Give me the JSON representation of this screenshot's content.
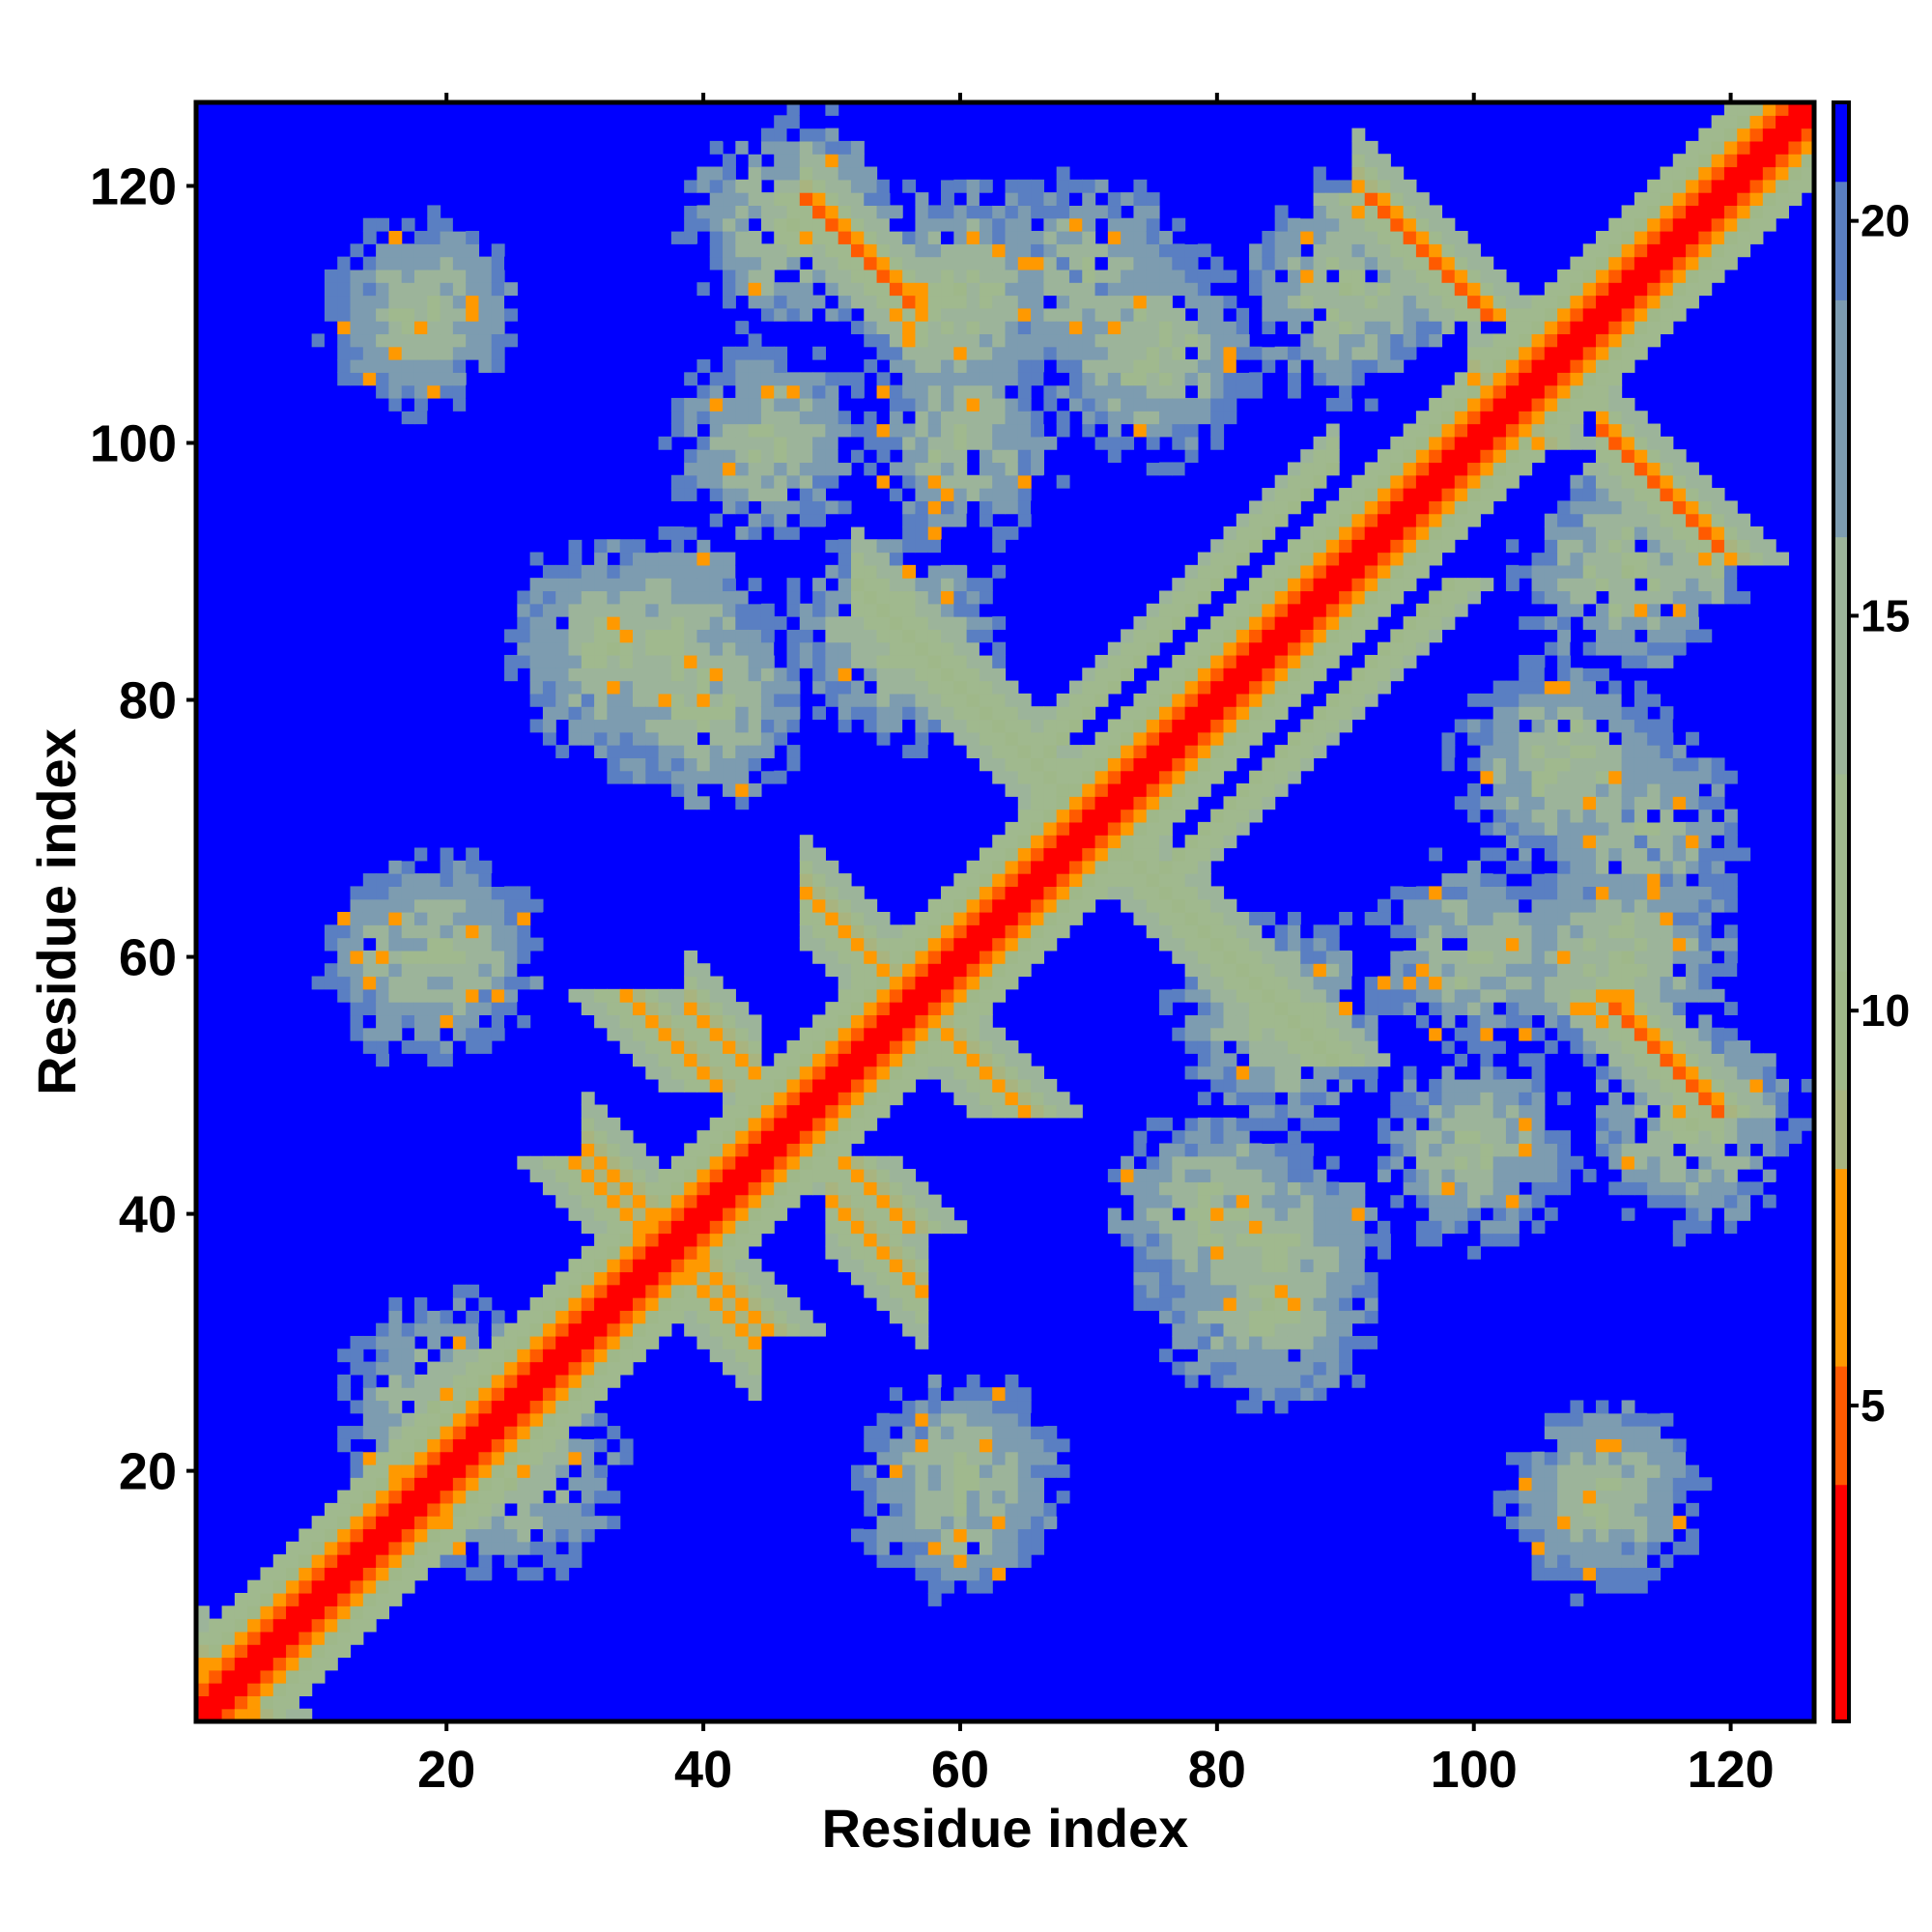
{
  "chart_data": {
    "type": "heatmap",
    "title": "",
    "xlabel": "Residue index",
    "ylabel": "Residue index",
    "xlim": [
      0.5,
      126.5
    ],
    "ylim": [
      0.5,
      126.5
    ],
    "x_ticks": [
      20,
      40,
      60,
      80,
      100,
      120
    ],
    "y_ticks": [
      20,
      40,
      60,
      80,
      100,
      120
    ],
    "x_tick_labels": [
      "20",
      "40",
      "60",
      "80",
      "100",
      "120"
    ],
    "y_tick_labels": [
      "20",
      "40",
      "60",
      "80",
      "100",
      "120"
    ],
    "grid": false,
    "colorbar": {
      "placement": "right",
      "range": [
        1.0,
        21.5
      ],
      "ticks": [
        5,
        10,
        15,
        20
      ],
      "tick_labels": [
        "5",
        "10",
        "15",
        "20"
      ],
      "bands": [
        {
          "from": 1.0,
          "to": 4.0,
          "color": "#ff0000"
        },
        {
          "from": 4.0,
          "to": 5.5,
          "color": "#ff5a00"
        },
        {
          "from": 5.5,
          "to": 8.0,
          "color": "#ff9900"
        },
        {
          "from": 8.0,
          "to": 9.0,
          "color": "#a9b47f"
        },
        {
          "from": 9.0,
          "to": 10.5,
          "color": "#9fb889"
        },
        {
          "from": 10.5,
          "to": 13.0,
          "color": "#a0b98e"
        },
        {
          "from": 13.0,
          "to": 16.0,
          "color": "#9cb49a"
        },
        {
          "from": 16.0,
          "to": 19.0,
          "color": "#7d9cb0"
        },
        {
          "from": 19.0,
          "to": 20.5,
          "color": "#5a7fc2"
        },
        {
          "from": 20.5,
          "to": 21.5,
          "color": "#0000ff"
        }
      ]
    },
    "n_residues": 126,
    "value_description": "pairwise residue distance (matrix is symmetric)",
    "diagonal_value": 2,
    "background_value": 21,
    "contact_bands": [
      {
        "i_start": 1,
        "j_start": 5,
        "length": 122,
        "value": 6,
        "note": "near-diagonal band"
      },
      {
        "i_start": 66,
        "j_start": 75,
        "length": 24,
        "value": 9,
        "note": "parallel band next to diagonal"
      },
      {
        "i_start": 30,
        "j_start": 44,
        "length": 8,
        "value": 6
      },
      {
        "i_start": 34,
        "j_start": 57,
        "length": 8,
        "value": 6
      },
      {
        "i_start": 38,
        "j_start": 38,
        "length": 8,
        "value": 6
      },
      {
        "i_start": 51,
        "j_start": 44,
        "length": 6,
        "value": 6
      },
      {
        "i_start": 56,
        "j_start": 57,
        "length": 10,
        "value": 6
      },
      {
        "i_start": 48,
        "j_start": 119,
        "length": 9,
        "value": 5
      },
      {
        "i_start": 92,
        "j_start": 119,
        "length": 10,
        "value": 5
      },
      {
        "i_start": 110,
        "j_start": 57,
        "length": 10,
        "value": 6
      },
      {
        "i_start": 113,
        "j_start": 98,
        "length": 8,
        "value": 6
      },
      {
        "i_start": 102,
        "j_start": 103,
        "length": 4,
        "value": 6
      }
    ],
    "contact_clusters": [
      {
        "i": 25,
        "j": 20,
        "radius": 8,
        "value": 11
      },
      {
        "i": 20,
        "j": 60,
        "radius": 7,
        "value": 12
      },
      {
        "i": 18,
        "j": 110,
        "radius": 6,
        "value": 13
      },
      {
        "i": 60,
        "j": 18,
        "radius": 7,
        "value": 12
      },
      {
        "i": 110,
        "j": 18,
        "radius": 7,
        "value": 12
      },
      {
        "i": 40,
        "j": 80,
        "radius": 8,
        "value": 11
      },
      {
        "i": 60,
        "j": 112,
        "radius": 7,
        "value": 11
      },
      {
        "i": 85,
        "j": 37,
        "radius": 7,
        "value": 11
      },
      {
        "i": 85,
        "j": 55,
        "radius": 7,
        "value": 11
      },
      {
        "i": 75,
        "j": 107,
        "radius": 7,
        "value": 11
      },
      {
        "i": 100,
        "j": 60,
        "radius": 8,
        "value": 12
      },
      {
        "i": 112,
        "j": 90,
        "radius": 7,
        "value": 11
      },
      {
        "i": 60,
        "j": 110,
        "radius": 6,
        "value": 12
      },
      {
        "i": 33,
        "j": 84,
        "radius": 6,
        "value": 11
      },
      {
        "i": 45,
        "j": 100,
        "radius": 6,
        "value": 12
      },
      {
        "i": 117,
        "j": 47,
        "radius": 6,
        "value": 11
      },
      {
        "i": 113,
        "j": 70,
        "radius": 6,
        "value": 12
      }
    ]
  }
}
